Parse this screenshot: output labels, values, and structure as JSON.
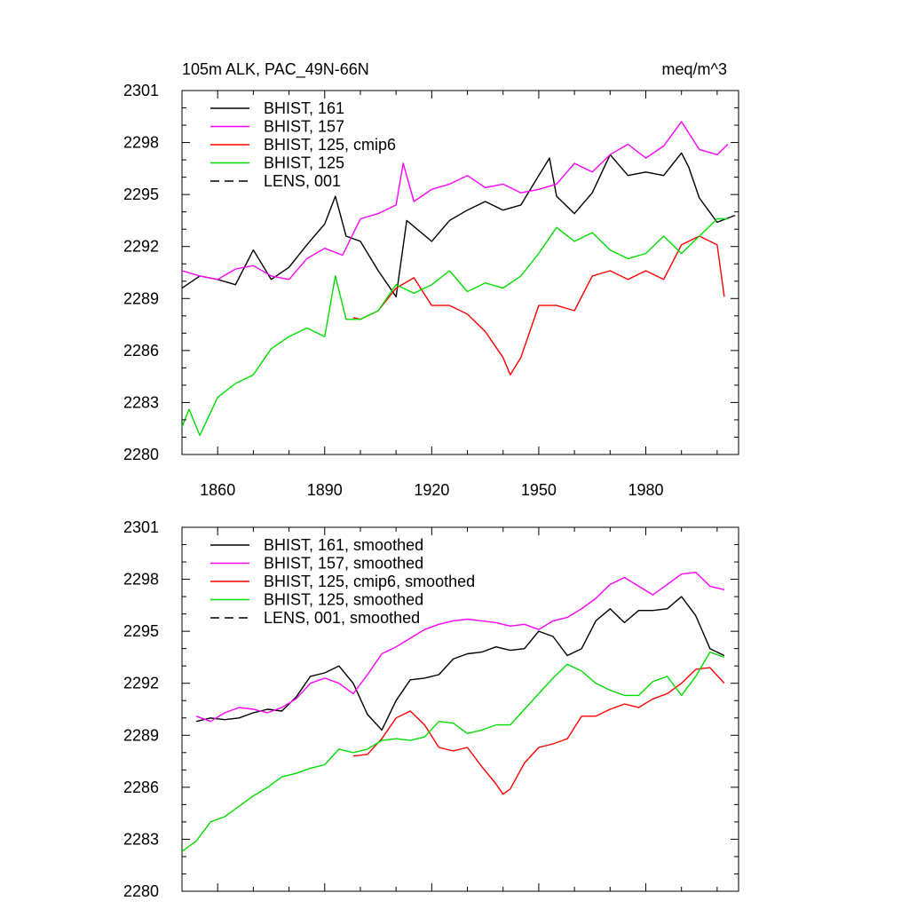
{
  "chart_data": [
    {
      "type": "line",
      "title": "105m ALK, PAC_49N-66N",
      "units": "meq/m^3",
      "xlim": [
        1850,
        2006
      ],
      "ylim": [
        2280,
        2301
      ],
      "yticks": [
        2280,
        2283,
        2286,
        2289,
        2292,
        2295,
        2298,
        2301
      ],
      "xticks": [
        1860,
        1890,
        1920,
        1950,
        1980
      ],
      "legend_position": "top-left",
      "legend": [
        "BHIST, 161",
        "BHIST, 157",
        "BHIST, 125, cmip6",
        "BHIST, 125",
        "LENS, 001"
      ],
      "series": [
        {
          "name": "BHIST, 161",
          "color": "#000000",
          "x": [
            1850,
            1855,
            1860,
            1865,
            1870,
            1875,
            1880,
            1885,
            1890,
            1893,
            1896,
            1900,
            1905,
            1910,
            1913,
            1920,
            1925,
            1930,
            1935,
            1940,
            1945,
            1950,
            1953,
            1955,
            1960,
            1965,
            1970,
            1975,
            1980,
            1985,
            1990,
            1992,
            1995,
            2000,
            2005
          ],
          "y": [
            2289.6,
            2290.3,
            2290.1,
            2289.8,
            2291.8,
            2290.1,
            2290.8,
            2292.1,
            2293.3,
            2294.9,
            2292.6,
            2292.3,
            2290.6,
            2289.1,
            2293.5,
            2292.3,
            2293.5,
            2294.1,
            2294.6,
            2294.1,
            2294.4,
            2296.1,
            2297.1,
            2294.9,
            2293.9,
            2295.1,
            2297.3,
            2296.1,
            2296.3,
            2296.1,
            2297.4,
            2296.6,
            2294.8,
            2293.4,
            2293.8
          ]
        },
        {
          "name": "BHIST, 157",
          "color": "#ff00ff",
          "x": [
            1850,
            1855,
            1860,
            1865,
            1870,
            1875,
            1880,
            1885,
            1890,
            1895,
            1900,
            1905,
            1910,
            1912,
            1915,
            1920,
            1925,
            1930,
            1935,
            1940,
            1945,
            1950,
            1955,
            1960,
            1965,
            1970,
            1975,
            1980,
            1985,
            1990,
            1995,
            2000,
            2003
          ],
          "y": [
            2290.6,
            2290.3,
            2290.1,
            2290.7,
            2290.9,
            2290.3,
            2290.1,
            2291.3,
            2291.9,
            2291.5,
            2293.6,
            2293.9,
            2294.4,
            2296.8,
            2294.6,
            2295.3,
            2295.6,
            2296.1,
            2295.4,
            2295.6,
            2295.1,
            2295.3,
            2295.6,
            2296.8,
            2296.3,
            2297.3,
            2297.9,
            2297.1,
            2297.8,
            2299.2,
            2297.6,
            2297.3,
            2297.9
          ]
        },
        {
          "name": "BHIST, 125, cmip6",
          "color": "#ff0000",
          "x": [
            1898,
            1900,
            1905,
            1910,
            1915,
            1920,
            1925,
            1930,
            1935,
            1940,
            1942,
            1945,
            1950,
            1955,
            1960,
            1965,
            1970,
            1975,
            1980,
            1985,
            1990,
            1995,
            2000,
            2002
          ],
          "y": [
            2287.9,
            2287.8,
            2288.3,
            2289.6,
            2290.2,
            2288.6,
            2288.6,
            2288.1,
            2287.1,
            2285.6,
            2284.6,
            2285.6,
            2288.6,
            2288.6,
            2288.3,
            2290.3,
            2290.6,
            2290.1,
            2290.6,
            2290.1,
            2292.1,
            2292.6,
            2292.1,
            2289.1
          ]
        },
        {
          "name": "BHIST, 125",
          "color": "#00dd00",
          "x": [
            1850,
            1852,
            1855,
            1860,
            1865,
            1870,
            1875,
            1880,
            1885,
            1890,
            1893,
            1896,
            1900,
            1905,
            1910,
            1915,
            1920,
            1925,
            1930,
            1935,
            1940,
            1945,
            1950,
            1955,
            1960,
            1965,
            1970,
            1975,
            1980,
            1985,
            1990,
            1995,
            2000,
            2003
          ],
          "y": [
            2281.6,
            2282.6,
            2281.1,
            2283.3,
            2284.1,
            2284.6,
            2286.1,
            2286.8,
            2287.3,
            2286.8,
            2290.3,
            2287.8,
            2287.8,
            2288.3,
            2289.8,
            2289.3,
            2289.8,
            2290.6,
            2289.4,
            2289.9,
            2289.6,
            2290.3,
            2291.6,
            2293.1,
            2292.3,
            2292.8,
            2291.8,
            2291.3,
            2291.6,
            2292.6,
            2291.6,
            2292.6,
            2293.6,
            2293.6
          ]
        }
      ]
    },
    {
      "type": "line",
      "xlim": [
        1850,
        2006
      ],
      "ylim": [
        2280,
        2301
      ],
      "yticks": [
        2280,
        2283,
        2286,
        2289,
        2292,
        2295,
        2298,
        2301
      ],
      "legend_position": "top-left",
      "legend": [
        "BHIST, 161, smoothed",
        "BHIST, 157, smoothed",
        "BHIST, 125, cmip6, smoothed",
        "BHIST, 125, smoothed",
        "LENS, 001, smoothed"
      ],
      "series": [
        {
          "name": "BHIST, 161, smoothed",
          "color": "#000000",
          "x": [
            1854,
            1858,
            1862,
            1866,
            1870,
            1874,
            1878,
            1882,
            1886,
            1890,
            1894,
            1898,
            1902,
            1906,
            1910,
            1914,
            1918,
            1922,
            1926,
            1930,
            1934,
            1938,
            1942,
            1946,
            1950,
            1954,
            1958,
            1962,
            1966,
            1970,
            1974,
            1978,
            1982,
            1986,
            1990,
            1994,
            1998,
            2002
          ],
          "y": [
            2289.8,
            2290.0,
            2289.9,
            2290.0,
            2290.3,
            2290.5,
            2290.4,
            2291.2,
            2292.4,
            2292.6,
            2293.0,
            2292.0,
            2290.2,
            2289.3,
            2291.0,
            2292.2,
            2292.3,
            2292.5,
            2293.4,
            2293.7,
            2293.8,
            2294.1,
            2293.9,
            2294.0,
            2295.0,
            2294.7,
            2293.6,
            2294.0,
            2295.6,
            2296.3,
            2295.5,
            2296.2,
            2296.2,
            2296.3,
            2297.0,
            2295.9,
            2294.0,
            2293.6
          ]
        },
        {
          "name": "BHIST, 157, smoothed",
          "color": "#ff00ff",
          "x": [
            1854,
            1858,
            1862,
            1866,
            1870,
            1874,
            1878,
            1882,
            1886,
            1890,
            1894,
            1898,
            1902,
            1906,
            1910,
            1914,
            1918,
            1922,
            1926,
            1930,
            1934,
            1938,
            1942,
            1946,
            1950,
            1954,
            1958,
            1962,
            1966,
            1970,
            1974,
            1978,
            1982,
            1986,
            1990,
            1994,
            1998,
            2002
          ],
          "y": [
            2290.1,
            2289.8,
            2290.3,
            2290.6,
            2290.5,
            2290.3,
            2290.6,
            2291.1,
            2292.0,
            2292.3,
            2292.0,
            2291.4,
            2292.5,
            2293.7,
            2294.1,
            2294.6,
            2295.1,
            2295.4,
            2295.6,
            2295.7,
            2295.6,
            2295.5,
            2295.3,
            2295.4,
            2295.1,
            2295.6,
            2295.8,
            2296.3,
            2296.9,
            2297.7,
            2298.1,
            2297.6,
            2297.1,
            2297.7,
            2298.3,
            2298.4,
            2297.6,
            2297.4
          ]
        },
        {
          "name": "BHIST, 125, cmip6, smoothed",
          "color": "#ff0000",
          "x": [
            1898,
            1902,
            1906,
            1910,
            1914,
            1918,
            1922,
            1926,
            1930,
            1934,
            1938,
            1940,
            1942,
            1946,
            1950,
            1954,
            1958,
            1962,
            1966,
            1970,
            1974,
            1978,
            1982,
            1986,
            1990,
            1994,
            1998,
            2002
          ],
          "y": [
            2287.8,
            2287.9,
            2288.8,
            2290.0,
            2290.4,
            2289.6,
            2288.3,
            2288.1,
            2288.3,
            2287.2,
            2286.2,
            2285.6,
            2285.9,
            2287.4,
            2288.3,
            2288.5,
            2288.8,
            2290.1,
            2290.1,
            2290.5,
            2290.8,
            2290.6,
            2291.1,
            2291.4,
            2292.0,
            2292.8,
            2292.9,
            2292.0
          ]
        },
        {
          "name": "BHIST, 125, smoothed",
          "color": "#00dd00",
          "x": [
            1850,
            1854,
            1858,
            1862,
            1866,
            1870,
            1874,
            1878,
            1882,
            1886,
            1890,
            1894,
            1898,
            1902,
            1906,
            1910,
            1914,
            1918,
            1922,
            1926,
            1930,
            1934,
            1938,
            1942,
            1946,
            1950,
            1954,
            1958,
            1962,
            1966,
            1970,
            1974,
            1978,
            1982,
            1986,
            1990,
            1994,
            1998,
            2002
          ],
          "y": [
            2282.3,
            2282.9,
            2284.0,
            2284.3,
            2284.9,
            2285.5,
            2286.0,
            2286.6,
            2286.8,
            2287.1,
            2287.3,
            2288.2,
            2288.0,
            2288.2,
            2288.7,
            2288.8,
            2288.7,
            2288.9,
            2289.8,
            2289.7,
            2289.1,
            2289.3,
            2289.6,
            2289.6,
            2290.5,
            2291.4,
            2292.3,
            2293.1,
            2292.7,
            2292.0,
            2291.6,
            2291.3,
            2291.3,
            2292.1,
            2292.4,
            2291.3,
            2292.4,
            2293.8,
            2293.5
          ]
        }
      ]
    }
  ]
}
